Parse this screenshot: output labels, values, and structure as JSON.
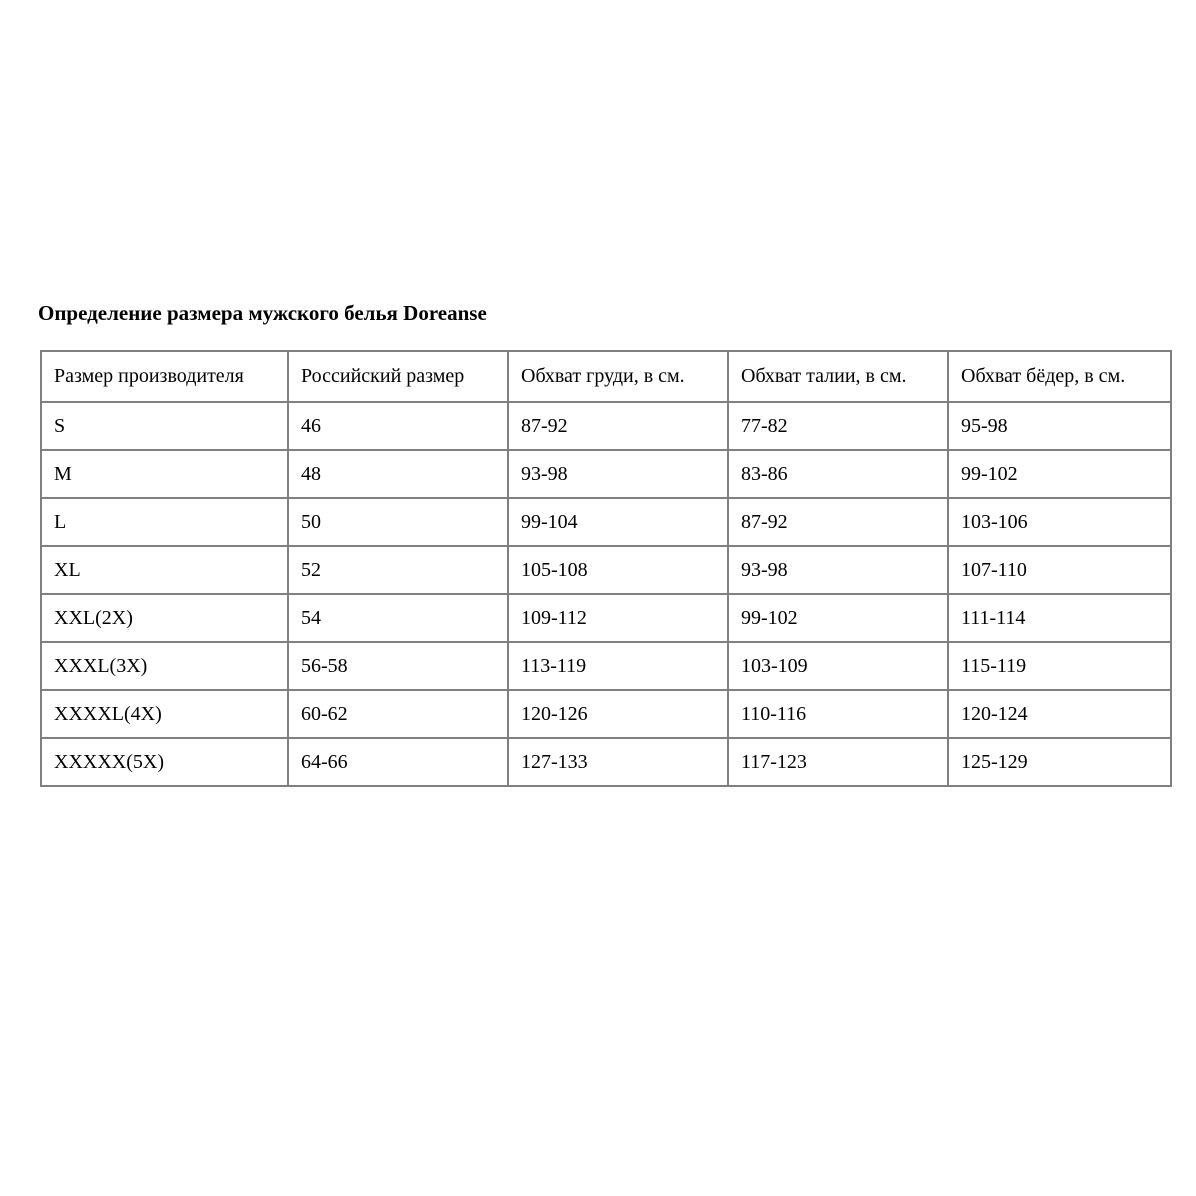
{
  "page": {
    "title": "Определение размера мужского белья Doreanse"
  },
  "table": {
    "columns": [
      "Размер производителя",
      "Российский размер",
      "Обхват груди, в см.",
      "Обхват талии, в см.",
      "Обхват бёдер, в см."
    ],
    "rows": [
      [
        "S",
        "46",
        "87-92",
        "77-82",
        "95-98"
      ],
      [
        "M",
        "48",
        "93-98",
        "83-86",
        "99-102"
      ],
      [
        "L",
        "50",
        "99-104",
        "87-92",
        "103-106"
      ],
      [
        "XL",
        "52",
        "105-108",
        "93-98",
        "107-110"
      ],
      [
        "XXL(2X)",
        "54",
        "109-112",
        "99-102",
        "111-114"
      ],
      [
        "XXXL(3X)",
        "56-58",
        "113-119",
        "103-109",
        "115-119"
      ],
      [
        "XXXXL(4X)",
        "60-62",
        "120-126",
        "110-116",
        "120-124"
      ],
      [
        "XXXXX(5X)",
        "64-66",
        "127-133",
        "117-123",
        "125-129"
      ]
    ]
  },
  "colors": {
    "background": "#ffffff",
    "text": "#000000",
    "table_border": "#808080"
  }
}
